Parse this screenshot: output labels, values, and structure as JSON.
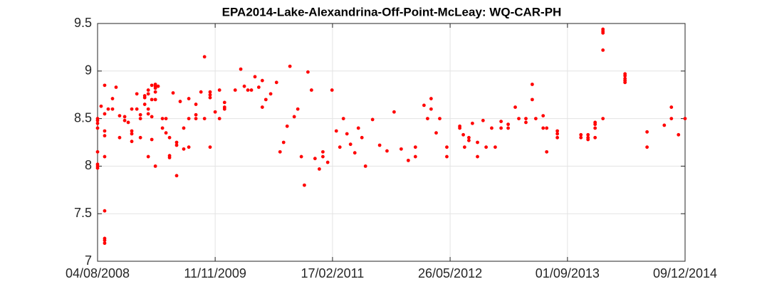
{
  "chart_data": {
    "type": "scatter",
    "title": "EPA2014-Lake-Alexandrina-Off-Point-McLeay: WQ-CAR-PH",
    "color": "#ff0000",
    "grid": true,
    "xlim": [
      "04/08/2008",
      "09/12/2014"
    ],
    "xticks": [
      "04/08/2008",
      "11/11/2009",
      "17/02/2011",
      "26/05/2012",
      "01/09/2013",
      "09/12/2014"
    ],
    "ylim": [
      7,
      9.5
    ],
    "yticks": [
      7,
      7.5,
      8,
      8.5,
      9,
      9.5
    ],
    "x": [
      "04/08/2008",
      "04/08/2008",
      "04/08/2008",
      "04/08/2008",
      "04/08/2008",
      "04/08/2008",
      "04/08/2008",
      "04/08/2008",
      "18/08/2008",
      "01/09/2008",
      "01/09/2008",
      "01/09/2008",
      "01/09/2008",
      "01/09/2008",
      "01/09/2008",
      "01/09/2008",
      "01/09/2008",
      "01/09/2008",
      "15/09/2008",
      "02/10/2008",
      "02/10/2008",
      "16/10/2008",
      "30/10/2008",
      "30/10/2008",
      "19/11/2008",
      "19/11/2008",
      "03/12/2008",
      "17/12/2008",
      "17/12/2008",
      "17/12/2008",
      "17/12/2008",
      "06/01/2009",
      "06/01/2009",
      "20/01/2009",
      "20/01/2009",
      "20/01/2009",
      "06/02/2009",
      "06/02/2009",
      "06/02/2009",
      "20/02/2009",
      "20/02/2009",
      "20/02/2009",
      "20/02/2009",
      "20/02/2009",
      "06/03/2009",
      "06/03/2009",
      "06/03/2009",
      "06/03/2009",
      "20/03/2009",
      "20/03/2009",
      "20/03/2009",
      "20/03/2009",
      "20/03/2009",
      "20/03/2009",
      "31/03/2009",
      "17/04/2009",
      "17/04/2009",
      "01/05/2009",
      "01/05/2009",
      "15/05/2009",
      "15/05/2009",
      "15/05/2009",
      "29/05/2009",
      "12/06/2009",
      "12/06/2009",
      "12/06/2009",
      "26/06/2009",
      "10/07/2009",
      "10/07/2009",
      "30/07/2009",
      "30/07/2009",
      "30/07/2009",
      "27/08/2009",
      "27/08/2009",
      "27/08/2009",
      "16/09/2009",
      "30/09/2009",
      "30/09/2009",
      "22/10/2009",
      "22/10/2009",
      "22/10/2009",
      "22/10/2009",
      "11/11/2009",
      "28/11/2009",
      "28/11/2009",
      "18/12/2009",
      "18/12/2009",
      "18/12/2009",
      "29/01/2010",
      "20/02/2010",
      "06/03/2010",
      "20/03/2010",
      "03/04/2010",
      "17/04/2010",
      "02/05/2010",
      "16/05/2010",
      "16/05/2010",
      "30/05/2010",
      "18/06/2010",
      "11/07/2010",
      "25/07/2010",
      "08/08/2010",
      "22/08/2010",
      "02/09/2010",
      "19/09/2010",
      "03/10/2010",
      "17/10/2010",
      "29/10/2010",
      "12/11/2010",
      "26/11/2010",
      "10/12/2010",
      "27/12/2010",
      "10/01/2011",
      "10/01/2011",
      "29/01/2011",
      "15/02/2011",
      "04/03/2011",
      "18/03/2011",
      "01/04/2011",
      "15/04/2011",
      "29/04/2011",
      "16/05/2011",
      "30/05/2011",
      "13/06/2011",
      "27/06/2011",
      "25/07/2011",
      "22/08/2011",
      "20/09/2011",
      "18/10/2011",
      "15/11/2011",
      "13/12/2011",
      "10/01/2012",
      "10/01/2012",
      "13/02/2012",
      "27/02/2012",
      "12/03/2012",
      "12/03/2012",
      "01/04/2012",
      "15/04/2012",
      "13/05/2012",
      "13/05/2012",
      "03/07/2012",
      "03/07/2012",
      "17/07/2012",
      "22/07/2012",
      "08/08/2012",
      "08/08/2012",
      "22/08/2012",
      "11/09/2012",
      "11/09/2012",
      "03/10/2012",
      "15/10/2012",
      "06/11/2012",
      "20/11/2012",
      "13/12/2012",
      "13/12/2012",
      "10/01/2013",
      "10/01/2013",
      "07/02/2013",
      "21/02/2013",
      "21/03/2013",
      "21/03/2013",
      "15/04/2013",
      "15/04/2013",
      "29/04/2013",
      "28/05/2013",
      "28/05/2013",
      "11/06/2013",
      "11/06/2013",
      "23/07/2013",
      "23/07/2013",
      "23/07/2013",
      "24/10/2013",
      "24/10/2013",
      "21/11/2013",
      "21/11/2013",
      "21/11/2013",
      "19/12/2013",
      "19/12/2013",
      "19/12/2013",
      "19/12/2013",
      "19/01/2014",
      "19/01/2014",
      "19/01/2014",
      "19/01/2014",
      "19/01/2014",
      "16/04/2014",
      "16/04/2014",
      "16/04/2014",
      "16/04/2014",
      "16/04/2014",
      "12/07/2014",
      "12/07/2014",
      "18/09/2014",
      "16/10/2014",
      "16/10/2014",
      "13/11/2014",
      "09/12/2014"
    ],
    "values": [
      8.5,
      8.48,
      8.45,
      8.4,
      8.15,
      8.02,
      8.0,
      7.98,
      8.63,
      8.85,
      8.55,
      8.37,
      8.32,
      8.1,
      7.53,
      7.24,
      7.22,
      7.19,
      8.6,
      8.6,
      8.71,
      8.83,
      8.53,
      8.3,
      8.52,
      8.48,
      8.46,
      8.6,
      8.37,
      8.34,
      8.26,
      8.76,
      8.6,
      8.54,
      8.5,
      8.3,
      8.74,
      8.72,
      8.65,
      8.8,
      8.76,
      8.6,
      8.55,
      8.1,
      8.85,
      8.7,
      8.52,
      8.28,
      8.86,
      8.84,
      8.82,
      8.78,
      8.7,
      8.0,
      8.84,
      8.5,
      8.4,
      8.5,
      8.35,
      8.3,
      8.11,
      8.09,
      8.77,
      8.25,
      8.22,
      7.9,
      8.68,
      8.4,
      8.18,
      8.71,
      8.5,
      8.2,
      8.54,
      8.5,
      8.65,
      8.78,
      9.15,
      8.5,
      8.78,
      8.75,
      8.72,
      8.2,
      8.57,
      8.8,
      8.5,
      8.67,
      8.62,
      8.6,
      8.8,
      9.02,
      8.84,
      8.8,
      8.8,
      8.94,
      8.83,
      8.9,
      8.62,
      8.7,
      8.76,
      8.88,
      8.15,
      8.25,
      8.42,
      9.05,
      8.52,
      8.6,
      8.1,
      7.8,
      8.99,
      8.8,
      8.08,
      7.97,
      8.15,
      8.1,
      8.04,
      8.8,
      8.37,
      8.2,
      8.5,
      8.34,
      8.23,
      8.14,
      8.4,
      8.3,
      8.0,
      8.49,
      8.22,
      8.16,
      8.57,
      8.18,
      8.06,
      8.1,
      8.2,
      8.64,
      8.5,
      8.71,
      8.6,
      8.35,
      8.5,
      8.2,
      8.1,
      8.42,
      8.4,
      8.33,
      8.2,
      8.3,
      8.27,
      8.45,
      8.25,
      8.1,
      8.48,
      8.2,
      8.4,
      8.2,
      8.47,
      8.4,
      8.44,
      8.4,
      8.62,
      8.5,
      8.5,
      8.46,
      8.86,
      8.7,
      8.5,
      8.53,
      8.4,
      8.4,
      8.15,
      8.37,
      8.34,
      8.3,
      8.33,
      8.3,
      8.33,
      8.3,
      8.28,
      8.46,
      8.44,
      8.4,
      8.3,
      9.44,
      9.42,
      9.4,
      9.22,
      8.5,
      8.97,
      8.95,
      8.92,
      8.9,
      8.88,
      8.36,
      8.2,
      8.43,
      8.62,
      8.5,
      8.33,
      8.5
    ]
  }
}
